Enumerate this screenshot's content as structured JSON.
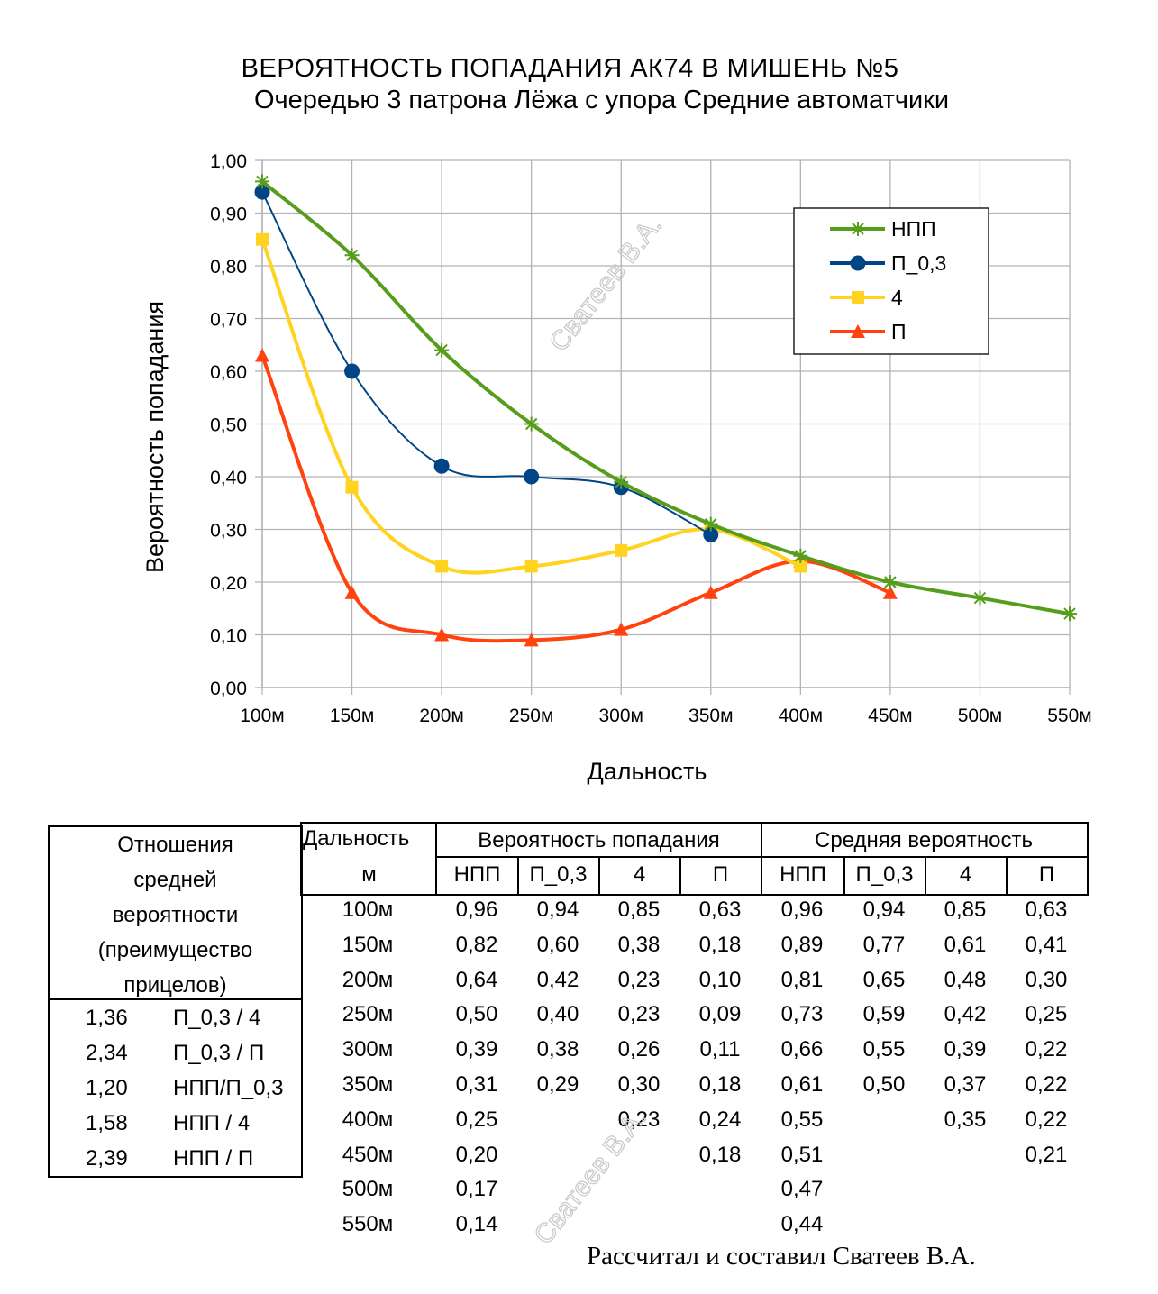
{
  "chart_data": {
    "type": "line",
    "title": "ВЕРОЯТНОСТЬ  ПОПАДАНИЯ АК74  В МИШЕНЬ №5",
    "subtitle": "Очередью 3 патрона Лёжа с упора Средние автоматчики",
    "xlabel": "Дальность",
    "ylabel": "Вероятность попадания",
    "categories": [
      "100м",
      "150м",
      "200м",
      "250м",
      "300м",
      "350м",
      "400м",
      "450м",
      "500м",
      "550м"
    ],
    "ylim": [
      0,
      1
    ],
    "yticks": [
      "0,00",
      "0,10",
      "0,20",
      "0,30",
      "0,40",
      "0,50",
      "0,60",
      "0,70",
      "0,80",
      "0,90",
      "1,00"
    ],
    "grid": true,
    "legend_position": "top-right",
    "series": [
      {
        "name": "НПП",
        "color": "#579d1c",
        "marker": "star",
        "values": [
          0.96,
          0.82,
          0.64,
          0.5,
          0.39,
          0.31,
          0.25,
          0.2,
          0.17,
          0.14
        ]
      },
      {
        "name": "П_0,3",
        "color": "#004586",
        "marker": "circle",
        "values": [
          0.94,
          0.6,
          0.42,
          0.4,
          0.38,
          0.29,
          null,
          null,
          null,
          null
        ]
      },
      {
        "name": "4",
        "color": "#ffd320",
        "marker": "square",
        "values": [
          0.85,
          0.38,
          0.23,
          0.23,
          0.26,
          0.3,
          0.23,
          null,
          null,
          null
        ]
      },
      {
        "name": "П",
        "color": "#ff420e",
        "marker": "triangle",
        "values": [
          0.63,
          0.18,
          0.1,
          0.09,
          0.11,
          0.18,
          0.24,
          0.18,
          null,
          null
        ]
      }
    ]
  },
  "watermark": "Сватеев В.А.",
  "ratios": {
    "header": [
      "Отношения",
      "средней",
      "вероятности",
      "(преимущество",
      "прицелов)"
    ],
    "rows": [
      {
        "value": "1,36",
        "label": "П_0,3 / 4"
      },
      {
        "value": "2,34",
        "label": "П_0,3 / П"
      },
      {
        "value": "1,20",
        "label": "НПП/П_0,3"
      },
      {
        "value": "1,58",
        "label": "НПП / 4"
      },
      {
        "value": "2,39",
        "label": "НПП / П"
      }
    ]
  },
  "table": {
    "col_range": "Дальность",
    "col_unit": "м",
    "group_prob": "Вероятность попадания",
    "group_avg": "Средняя вероятность",
    "sub_headers": [
      "НПП",
      "П_0,3",
      "4",
      "П",
      "НПП",
      "П_0,3",
      "4",
      "П"
    ],
    "rows": [
      [
        "100м",
        "0,96",
        "0,94",
        "0,85",
        "0,63",
        "0,96",
        "0,94",
        "0,85",
        "0,63"
      ],
      [
        "150м",
        "0,82",
        "0,60",
        "0,38",
        "0,18",
        "0,89",
        "0,77",
        "0,61",
        "0,41"
      ],
      [
        "200м",
        "0,64",
        "0,42",
        "0,23",
        "0,10",
        "0,81",
        "0,65",
        "0,48",
        "0,30"
      ],
      [
        "250м",
        "0,50",
        "0,40",
        "0,23",
        "0,09",
        "0,73",
        "0,59",
        "0,42",
        "0,25"
      ],
      [
        "300м",
        "0,39",
        "0,38",
        "0,26",
        "0,11",
        "0,66",
        "0,55",
        "0,39",
        "0,22"
      ],
      [
        "350м",
        "0,31",
        "0,29",
        "0,30",
        "0,18",
        "0,61",
        "0,50",
        "0,37",
        "0,22"
      ],
      [
        "400м",
        "0,25",
        "",
        "0,23",
        "0,24",
        "0,55",
        "",
        "0,35",
        "0,22"
      ],
      [
        "450м",
        "0,20",
        "",
        "",
        "0,18",
        "0,51",
        "",
        "",
        "0,21"
      ],
      [
        "500м",
        "0,17",
        "",
        "",
        "",
        "0,47",
        "",
        "",
        ""
      ],
      [
        "550м",
        "0,14",
        "",
        "",
        "",
        "0,44",
        "",
        "",
        ""
      ]
    ]
  },
  "credit": "Рассчитал и составил Сватеев В.А."
}
